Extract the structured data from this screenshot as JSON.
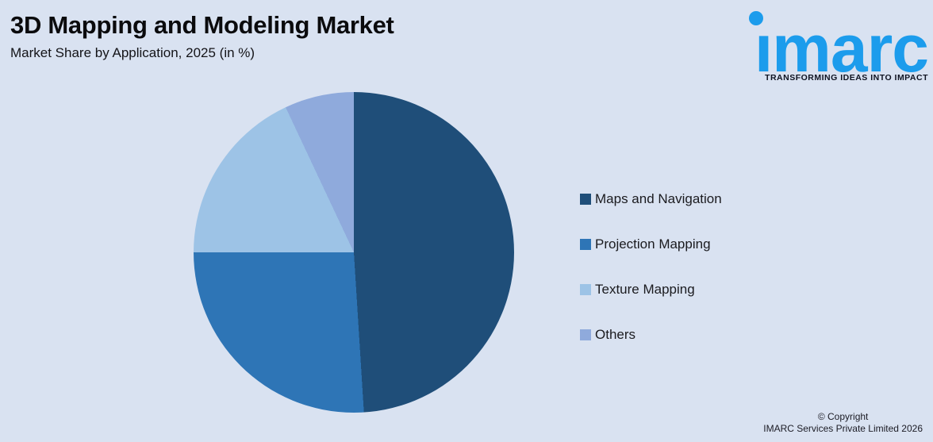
{
  "header": {
    "title": "3D Mapping and Modeling Market",
    "subtitle": "Market Share by Application, 2025 (in %)"
  },
  "logo": {
    "wordmark": "imarc",
    "tagline": "TRANSFORMING IDEAS INTO IMPACT"
  },
  "chart_data": {
    "type": "pie",
    "title": "3D Mapping and Modeling Market",
    "subtitle": "Market Share by Application, 2025 (in %)",
    "unit": "%",
    "start_angle_deg": 0,
    "direction": "clockwise",
    "legend_position": "right",
    "data_labels_shown": false,
    "segments": [
      {
        "label": "Maps and Navigation",
        "value": 49,
        "color": "#1F4E79"
      },
      {
        "label": "Projection Mapping",
        "value": 26,
        "color": "#2E75B6"
      },
      {
        "label": "Texture Mapping",
        "value": 18,
        "color": "#9DC3E6"
      },
      {
        "label": "Others",
        "value": 7,
        "color": "#8FAADC"
      }
    ]
  },
  "colors": {
    "background": "#D9E2F1",
    "logo_blue": "#1C9CEC",
    "text_dark": "#0B0B0D"
  },
  "copyright": {
    "line1": "© Copyright",
    "line2": "IMARC Services Private Limited 2026"
  }
}
